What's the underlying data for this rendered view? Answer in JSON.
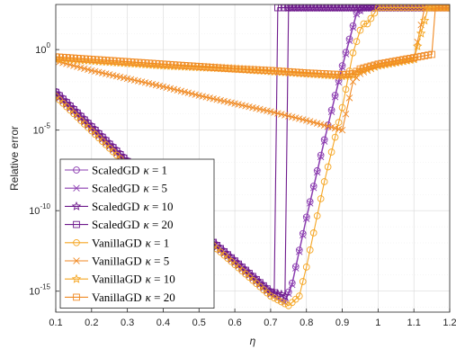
{
  "chart_data": {
    "type": "line",
    "xlabel": "η",
    "ylabel": "Relative error",
    "xlim": [
      0.1,
      1.2
    ],
    "ylim_log10": [
      -16.3,
      2.8
    ],
    "yscale": "log",
    "grid": true,
    "legend_position": "bottom-left",
    "x_ticks": [
      {
        "v": 0.1,
        "label": "0.1"
      },
      {
        "v": 0.2,
        "label": "0.2"
      },
      {
        "v": 0.3,
        "label": "0.3"
      },
      {
        "v": 0.4,
        "label": "0.4"
      },
      {
        "v": 0.5,
        "label": "0.5"
      },
      {
        "v": 0.6,
        "label": "0.6"
      },
      {
        "v": 0.7,
        "label": "0.7"
      },
      {
        "v": 0.8,
        "label": "0.8"
      },
      {
        "v": 0.9,
        "label": "0.9"
      },
      {
        "v": 1.0,
        "label": "1"
      },
      {
        "v": 1.1,
        "label": "1.1"
      },
      {
        "v": 1.2,
        "label": "1.2"
      }
    ],
    "y_ticks": [
      {
        "e": 0,
        "base": "10",
        "exp": "0"
      },
      {
        "e": -5,
        "base": "10",
        "exp": "-5"
      },
      {
        "e": -10,
        "base": "10",
        "exp": "-10"
      },
      {
        "e": -15,
        "base": "10",
        "exp": "-15"
      }
    ],
    "series": [
      {
        "name": "ScaledGD κ = 1",
        "legend_prefix": "ScaledGD",
        "kappa": "1",
        "color": "#8B3DB0",
        "marker": "circle",
        "x": [
          0.1,
          0.3,
          0.5,
          0.7,
          0.74,
          0.76,
          0.8,
          0.85,
          0.9,
          0.94,
          0.96,
          1.2
        ],
        "y_log10": [
          -2.6,
          -6.9,
          -11.2,
          -15.1,
          -15.6,
          -14.5,
          -10.4,
          -5.6,
          -1.0,
          2.3,
          2.6,
          2.6
        ]
      },
      {
        "name": "ScaledGD κ = 5",
        "legend_prefix": "ScaledGD",
        "kappa": "5",
        "color": "#8B3DB0",
        "marker": "x",
        "x": [
          0.1,
          0.3,
          0.5,
          0.7,
          0.74,
          0.76,
          0.8,
          0.85,
          0.9,
          0.94,
          0.96,
          1.2
        ],
        "y_log10": [
          -2.8,
          -7.1,
          -11.3,
          -15.2,
          -15.7,
          -14.6,
          -10.5,
          -5.7,
          -1.1,
          2.2,
          2.6,
          2.6
        ]
      },
      {
        "name": "ScaledGD κ = 10",
        "legend_prefix": "ScaledGD",
        "kappa": "10",
        "color": "#6E1A8C",
        "marker": "star",
        "x": [
          0.1,
          0.3,
          0.5,
          0.7,
          0.73,
          0.74,
          0.75,
          0.76,
          0.8,
          0.85,
          0.9,
          0.94,
          0.96,
          1.2
        ],
        "y_log10": [
          -2.7,
          -7.0,
          -11.25,
          -15.1,
          -15.2,
          -15.3,
          2.6,
          2.6,
          2.6,
          2.6,
          2.6,
          2.6,
          2.6,
          2.6
        ]
      },
      {
        "name": "ScaledGD κ = 20",
        "legend_prefix": "ScaledGD",
        "kappa": "20",
        "color": "#6E1A8C",
        "marker": "square",
        "x": [
          0.1,
          0.3,
          0.5,
          0.7,
          0.71,
          0.72,
          1.2
        ],
        "y_log10": [
          -2.65,
          -6.95,
          -11.2,
          -15.05,
          -15.1,
          2.6,
          2.6
        ]
      },
      {
        "name": "VanillaGD κ = 1",
        "legend_prefix": "VanillaGD",
        "kappa": "1",
        "color": "#F5A623",
        "marker": "circle",
        "x": [
          0.1,
          0.3,
          0.5,
          0.7,
          0.75,
          0.78,
          0.8,
          0.85,
          0.9,
          0.93,
          0.95,
          0.96,
          0.97,
          1.0,
          1.2
        ],
        "y_log10": [
          -2.9,
          -7.2,
          -11.4,
          -15.3,
          -15.9,
          -15.3,
          -13.5,
          -8.2,
          -3.6,
          -0.2,
          1.2,
          1.6,
          1.6,
          2.6,
          2.6
        ]
      },
      {
        "name": "VanillaGD κ = 5",
        "legend_prefix": "VanillaGD",
        "kappa": "5",
        "color": "#F08A24",
        "marker": "x",
        "x": [
          0.1,
          0.2,
          0.3,
          0.4,
          0.5,
          0.6,
          0.7,
          0.8,
          0.9,
          0.93,
          0.95,
          1.0,
          1.1,
          1.13,
          1.15,
          1.2
        ],
        "y_log10": [
          -0.7,
          -1.3,
          -1.8,
          -2.3,
          -2.85,
          -3.35,
          -3.85,
          -4.4,
          -5.0,
          -2.0,
          -1.5,
          -1.0,
          -0.6,
          2.6,
          2.6,
          2.6
        ]
      },
      {
        "name": "VanillaGD κ = 10",
        "legend_prefix": "VanillaGD",
        "kappa": "10",
        "color": "#F5A623",
        "marker": "star",
        "x": [
          0.1,
          0.2,
          0.3,
          0.4,
          0.5,
          0.6,
          0.7,
          0.8,
          0.9,
          0.93,
          0.95,
          1.0,
          1.1,
          1.14,
          1.16,
          1.2
        ],
        "y_log10": [
          -0.55,
          -0.7,
          -0.85,
          -1.0,
          -1.1,
          -1.2,
          -1.35,
          -1.5,
          -1.65,
          -1.6,
          -1.3,
          -1.0,
          -0.6,
          2.6,
          2.6,
          2.6
        ]
      },
      {
        "name": "VanillaGD κ = 20",
        "legend_prefix": "VanillaGD",
        "kappa": "20",
        "color": "#F08A24",
        "marker": "square",
        "x": [
          0.1,
          0.2,
          0.3,
          0.4,
          0.5,
          0.6,
          0.7,
          0.8,
          0.9,
          0.93,
          0.95,
          1.0,
          1.1,
          1.15,
          1.16,
          1.17,
          1.2
        ],
        "y_log10": [
          -0.45,
          -0.6,
          -0.75,
          -0.9,
          -1.05,
          -1.2,
          -1.3,
          -1.45,
          -1.55,
          -1.5,
          -1.2,
          -0.9,
          -0.5,
          -0.3,
          2.6,
          2.6,
          2.6
        ]
      }
    ]
  }
}
